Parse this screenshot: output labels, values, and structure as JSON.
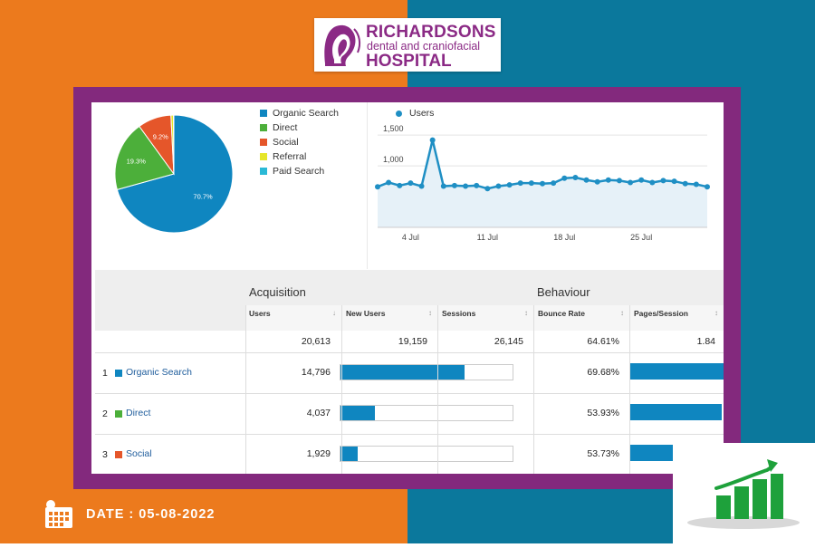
{
  "header": {
    "logo_line1": "RICHARDSONS",
    "logo_line2": "dental and craniofacial",
    "logo_line3": "HOSPITAL"
  },
  "footer": {
    "date": "DATE : 05-08-2022"
  },
  "colors": {
    "orange_bg": "#ec7a1d",
    "teal_bg": "#0b789c",
    "frame_purple": "#83297d",
    "organic": "#0f86c0",
    "direct": "#4caf3a",
    "social": "#e5562a",
    "referral": "#e6e62a",
    "paid": "#2ab9d6"
  },
  "chart_data": [
    {
      "type": "pie",
      "categories": [
        "Organic Search",
        "Direct",
        "Social",
        "Referral",
        "Paid Search"
      ],
      "values": [
        70.7,
        19.3,
        9.2,
        0.7,
        0.1
      ],
      "labels": [
        "70.7%",
        "19.3%",
        "9.2%",
        "",
        ""
      ],
      "legend": [
        "Organic Search",
        "Direct",
        "Social",
        "Referral",
        "Paid Search"
      ],
      "colors": [
        "#0f86c0",
        "#4caf3a",
        "#e5562a",
        "#e6e62a",
        "#2ab9d6"
      ]
    },
    {
      "type": "area",
      "title": "",
      "legend": "Users",
      "x": [
        "1 Jul",
        "2 Jul",
        "3 Jul",
        "4 Jul",
        "5 Jul",
        "6 Jul",
        "7 Jul",
        "8 Jul",
        "9 Jul",
        "10 Jul",
        "11 Jul",
        "12 Jul",
        "13 Jul",
        "14 Jul",
        "15 Jul",
        "16 Jul",
        "17 Jul",
        "18 Jul",
        "19 Jul",
        "20 Jul",
        "21 Jul",
        "22 Jul",
        "23 Jul",
        "24 Jul",
        "25 Jul",
        "26 Jul",
        "27 Jul",
        "28 Jul",
        "29 Jul",
        "30 Jul",
        "31 Jul"
      ],
      "values": [
        660,
        730,
        680,
        720,
        670,
        1420,
        670,
        680,
        670,
        680,
        630,
        670,
        690,
        720,
        720,
        710,
        720,
        800,
        810,
        770,
        740,
        770,
        760,
        730,
        770,
        730,
        760,
        750,
        710,
        700,
        660
      ],
      "yticks": [
        "500",
        "1,000",
        "1,500"
      ],
      "ytick_values": [
        500,
        1000,
        1500
      ],
      "xticks": [
        "4 Jul",
        "11 Jul",
        "18 Jul",
        "25 Jul"
      ],
      "ylim": [
        0,
        1650
      ]
    }
  ],
  "table": {
    "group_acquisition": "Acquisition",
    "group_behaviour": "Behaviour",
    "columns": [
      "Users",
      "New Users",
      "Sessions",
      "Bounce Rate",
      "Pages/Session"
    ],
    "totals": [
      "20,613",
      "19,159",
      "26,145",
      "64.61%",
      "1.84"
    ],
    "rows": [
      {
        "num": "1",
        "name": "Organic Search",
        "users": "14,796",
        "sessions_share": 0.72,
        "bounce": "69.68%",
        "pages_share": 1.0
      },
      {
        "num": "2",
        "name": "Direct",
        "users": "4,037",
        "sessions_share": 0.2,
        "bounce": "53.93%",
        "pages_share": 0.98
      },
      {
        "num": "3",
        "name": "Social",
        "users": "1,929",
        "sessions_share": 0.1,
        "bounce": "53.73%",
        "pages_share": 0.6
      }
    ]
  }
}
